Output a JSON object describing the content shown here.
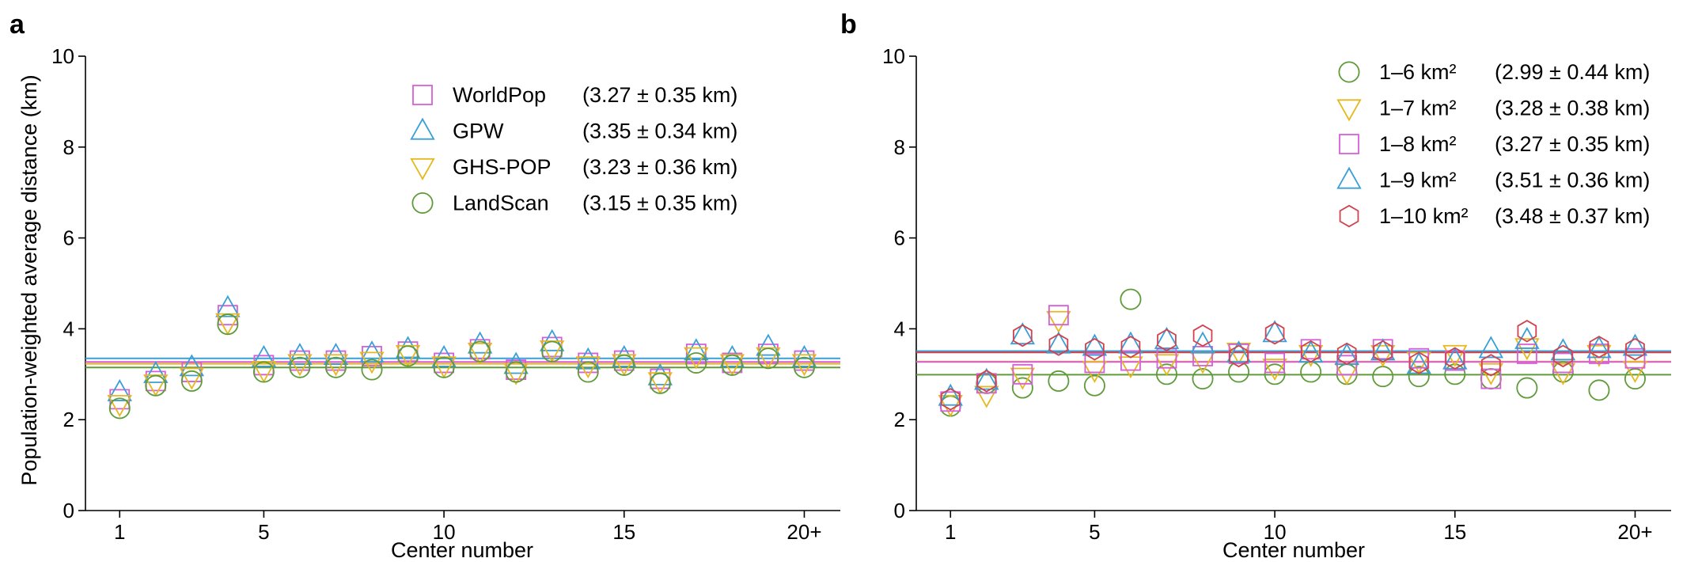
{
  "panels": [
    {
      "letter": "a",
      "chart_data": {
        "type": "scatter",
        "xlabel": "Center number",
        "ylabel": "Population-weighted average distance (km)",
        "ylim": [
          0,
          10
        ],
        "yticks": [
          "0",
          "2",
          "4",
          "6",
          "8",
          "10"
        ],
        "xticks": [
          {
            "at": 1,
            "label": "1"
          },
          {
            "at": 5,
            "label": "5"
          },
          {
            "at": 10,
            "label": "10"
          },
          {
            "at": 15,
            "label": "15"
          },
          {
            "at": 20,
            "label": "20+"
          }
        ],
        "x": [
          1,
          2,
          3,
          4,
          5,
          6,
          7,
          8,
          9,
          10,
          11,
          12,
          13,
          14,
          15,
          16,
          17,
          18,
          19,
          20
        ],
        "legend_position": "top-right",
        "series": [
          {
            "name": "WorldPop",
            "stat": "(3.27 ± 0.35 km)",
            "marker": "square",
            "color": "#d65fd8",
            "mean": 3.27,
            "values": [
              2.45,
              2.85,
              3.05,
              4.3,
              3.2,
              3.3,
              3.3,
              3.4,
              3.5,
              3.25,
              3.55,
              3.1,
              3.6,
              3.25,
              3.3,
              2.9,
              3.45,
              3.25,
              3.45,
              3.3
            ]
          },
          {
            "name": "GPW",
            "stat": "(3.35 ± 0.34 km)",
            "marker": "triangle-up",
            "color": "#3a9fd6",
            "mean": 3.35,
            "values": [
              2.6,
              3.0,
              3.15,
              4.45,
              3.35,
              3.4,
              3.4,
              3.45,
              3.55,
              3.35,
              3.65,
              3.2,
              3.7,
              3.3,
              3.35,
              2.95,
              3.5,
              3.35,
              3.6,
              3.35
            ]
          },
          {
            "name": "GHS-POP",
            "stat": "(3.23 ± 0.36 km)",
            "marker": "triangle-down",
            "color": "#e6b81f",
            "mean": 3.23,
            "values": [
              2.35,
              2.8,
              2.95,
              4.15,
              3.1,
              3.25,
              3.25,
              3.3,
              3.45,
              3.2,
              3.5,
              3.05,
              3.55,
              3.2,
              3.25,
              2.85,
              3.4,
              3.25,
              3.4,
              3.25
            ]
          },
          {
            "name": "LandScan",
            "stat": "(3.15 ± 0.35 km)",
            "marker": "circle",
            "color": "#5f9b3a",
            "mean": 3.15,
            "values": [
              2.25,
              2.75,
              2.85,
              4.1,
              3.05,
              3.15,
              3.15,
              3.1,
              3.4,
              3.15,
              3.5,
              3.05,
              3.5,
              3.05,
              3.2,
              2.8,
              3.25,
              3.2,
              3.35,
              3.15
            ]
          }
        ]
      }
    },
    {
      "letter": "b",
      "chart_data": {
        "type": "scatter",
        "xlabel": "Center number",
        "ylabel": "",
        "ylim": [
          0,
          10
        ],
        "yticks": [
          "0",
          "2",
          "4",
          "6",
          "8",
          "10"
        ],
        "xticks": [
          {
            "at": 1,
            "label": "1"
          },
          {
            "at": 5,
            "label": "5"
          },
          {
            "at": 10,
            "label": "10"
          },
          {
            "at": 15,
            "label": "15"
          },
          {
            "at": 20,
            "label": "20+"
          }
        ],
        "x": [
          1,
          2,
          3,
          4,
          5,
          6,
          7,
          8,
          9,
          10,
          11,
          12,
          13,
          14,
          15,
          16,
          17,
          18,
          19,
          20
        ],
        "legend_position": "top-right",
        "series": [
          {
            "name": "1–6 km²",
            "stat": "(2.99 ± 0.44 km)",
            "marker": "circle",
            "color": "#5f9b3a",
            "mean": 2.99,
            "values": [
              2.3,
              2.8,
              2.7,
              2.85,
              2.75,
              4.65,
              3.0,
              2.9,
              3.05,
              3.0,
              3.05,
              3.0,
              2.95,
              2.95,
              3.0,
              2.9,
              2.7,
              3.05,
              2.65,
              2.9
            ]
          },
          {
            "name": "1–7 km²",
            "stat": "(3.28 ± 0.38 km)",
            "marker": "triangle-down",
            "color": "#e6b81f",
            "mean": 3.28,
            "values": [
              2.35,
              2.55,
              2.95,
              4.2,
              3.1,
              3.2,
              3.25,
              3.3,
              3.5,
              3.15,
              3.45,
              3.05,
              3.45,
              3.3,
              3.45,
              3.05,
              3.6,
              3.05,
              3.45,
              3.1
            ]
          },
          {
            "name": "1–8 km²",
            "stat": "(3.27 ± 0.35 km)",
            "marker": "square",
            "color": "#d65fd8",
            "mean": 3.27,
            "values": [
              2.4,
              2.8,
              3.0,
              4.3,
              3.25,
              3.3,
              3.35,
              3.4,
              3.45,
              3.25,
              3.55,
              3.2,
              3.55,
              3.35,
              3.3,
              2.9,
              3.45,
              3.25,
              3.45,
              3.35
            ]
          },
          {
            "name": "1–9 km²",
            "stat": "(3.51 ± 0.36 km)",
            "marker": "triangle-up",
            "color": "#3a9fd6",
            "mean": 3.51,
            "values": [
              2.5,
              2.85,
              3.85,
              3.65,
              3.6,
              3.65,
              3.75,
              3.65,
              3.45,
              3.9,
              3.45,
              3.4,
              3.5,
              3.2,
              3.3,
              3.55,
              3.75,
              3.5,
              3.55,
              3.6
            ]
          },
          {
            "name": "1–10 km²",
            "stat": "(3.48 ± 0.37 km)",
            "marker": "hexagon",
            "color": "#d1424f",
            "mean": 3.48,
            "values": [
              2.45,
              2.85,
              3.85,
              3.65,
              3.55,
              3.6,
              3.75,
              3.85,
              3.4,
              3.9,
              3.5,
              3.45,
              3.5,
              3.25,
              3.35,
              3.2,
              3.95,
              3.4,
              3.6,
              3.55
            ]
          }
        ]
      }
    }
  ]
}
